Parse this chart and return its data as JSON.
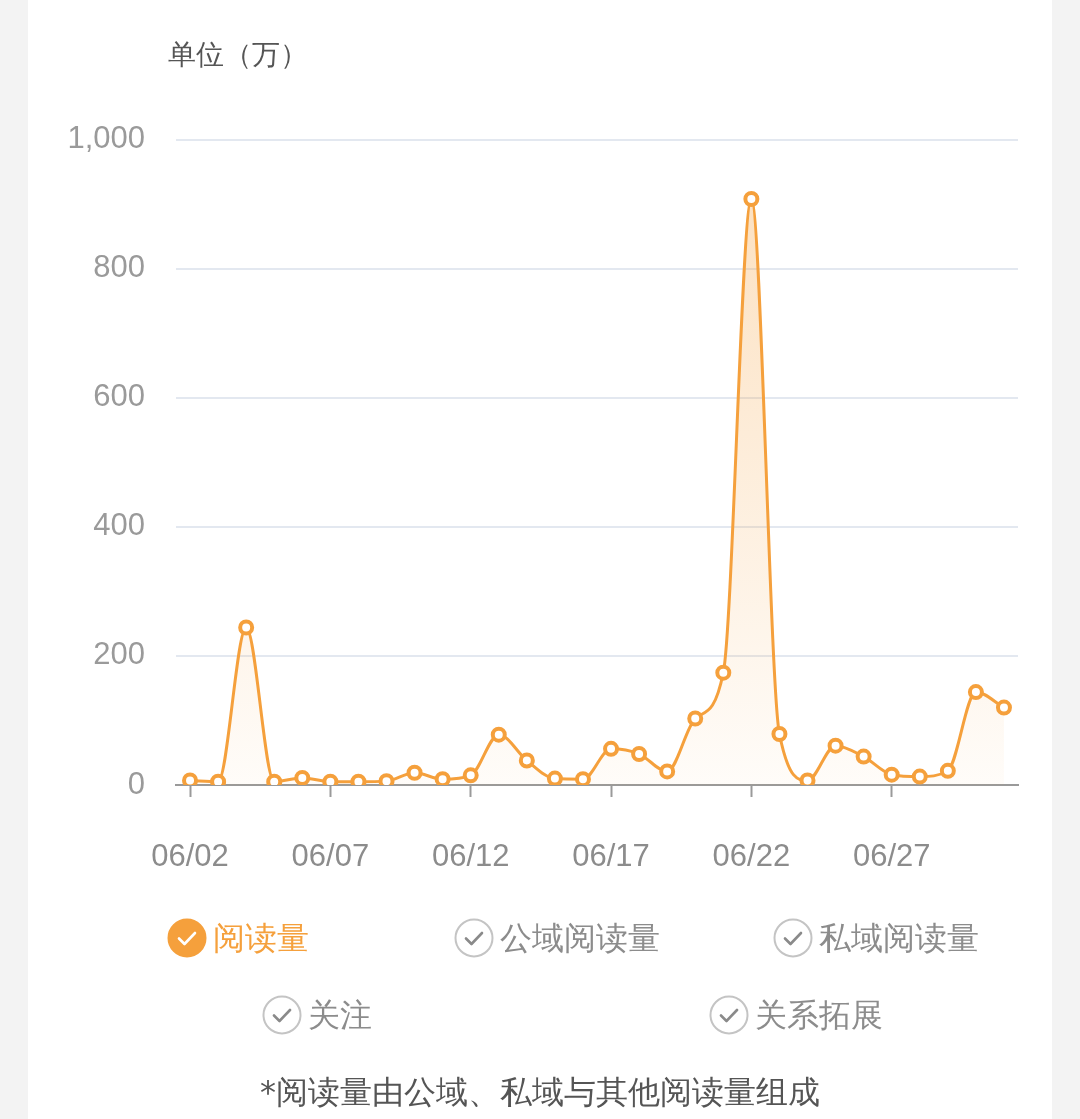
{
  "chart_data": {
    "type": "area",
    "ylabel": "单位（万）",
    "annotations": [
      "*阅读量由公域、私域与其他阅读量组成"
    ],
    "categories": [
      "06/02",
      null,
      null,
      null,
      null,
      "06/07",
      null,
      null,
      null,
      null,
      "06/12",
      null,
      null,
      null,
      null,
      "06/17",
      null,
      null,
      null,
      null,
      "06/22",
      null,
      null,
      null,
      null,
      "06/27",
      null,
      null,
      null,
      null
    ],
    "series": [
      {
        "name": "阅读量",
        "color": "#f5a03c",
        "values": [
          7,
          5,
          244,
          5,
          11,
          5,
          5,
          6,
          19,
          9,
          15,
          78,
          38,
          10,
          9,
          56,
          48,
          21,
          103,
          174,
          908,
          79,
          7,
          61,
          44,
          16,
          13,
          22,
          144,
          120
        ]
      },
      {
        "name": "公域阅读量",
        "values": [
          null,
          null,
          null,
          null,
          null,
          null,
          null,
          null,
          null,
          null,
          null,
          null,
          null,
          null,
          null,
          null,
          null,
          null,
          null,
          null,
          null,
          null,
          null,
          null,
          null,
          null,
          null,
          null,
          null,
          null
        ]
      },
      {
        "name": "私域阅读量",
        "values": [
          null,
          null,
          null,
          null,
          null,
          null,
          null,
          null,
          null,
          null,
          null,
          null,
          null,
          null,
          null,
          null,
          null,
          null,
          null,
          null,
          null,
          null,
          null,
          null,
          null,
          null,
          null,
          null,
          null,
          null
        ]
      },
      {
        "name": "关注",
        "values": [
          null,
          null,
          null,
          null,
          null,
          null,
          null,
          null,
          null,
          null,
          null,
          null,
          null,
          null,
          null,
          null,
          null,
          null,
          null,
          null,
          null,
          null,
          null,
          null,
          null,
          null,
          null,
          null,
          null,
          null
        ]
      },
      {
        "name": "关系拓展",
        "values": [
          null,
          null,
          null,
          null,
          null,
          null,
          null,
          null,
          null,
          null,
          null,
          null,
          null,
          null,
          null,
          null,
          null,
          null,
          null,
          null,
          null,
          null,
          null,
          null,
          null,
          null,
          null,
          null,
          null,
          null
        ]
      }
    ],
    "ylim": [
      0,
      1000
    ],
    "yticks": [
      0,
      200,
      400,
      600,
      800,
      {
        "value": 1000,
        "label": "1,000"
      }
    ],
    "grid": "y",
    "legend": "bottom",
    "marker": "circle",
    "line_style": "solid"
  }
}
